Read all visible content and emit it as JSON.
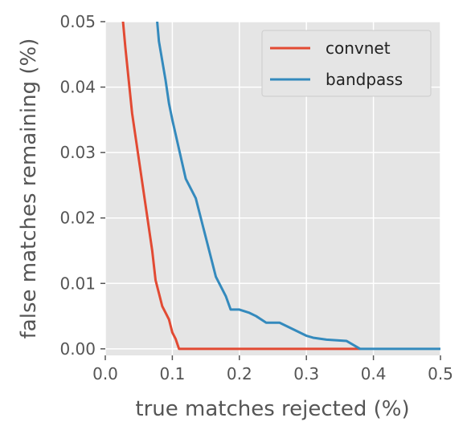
{
  "chart_data": {
    "type": "line",
    "title": "",
    "xlabel": "true matches rejected (%)",
    "ylabel": "false matches remaining (%)",
    "xlim": [
      0.0,
      0.5
    ],
    "ylim": [
      -0.001,
      0.05
    ],
    "xticks": [
      0.0,
      0.1,
      0.2,
      0.3,
      0.4,
      0.5
    ],
    "xtick_labels": [
      "0.0",
      "0.1",
      "0.2",
      "0.3",
      "0.4",
      "0.5"
    ],
    "yticks": [
      0.0,
      0.01,
      0.02,
      0.03,
      0.04,
      0.05
    ],
    "ytick_labels": [
      "0.00",
      "0.01",
      "0.02",
      "0.03",
      "0.04",
      "0.05"
    ],
    "grid": true,
    "legend_position": "top-right",
    "background": "#E5E5E5",
    "series": [
      {
        "name": "convnet",
        "color": "#E24A33",
        "x": [
          0.026,
          0.03,
          0.035,
          0.04,
          0.05,
          0.06,
          0.07,
          0.075,
          0.08,
          0.085,
          0.09,
          0.095,
          0.1,
          0.105,
          0.11,
          0.2,
          0.3,
          0.38
        ],
        "y": [
          0.0505,
          0.046,
          0.041,
          0.036,
          0.029,
          0.022,
          0.015,
          0.0105,
          0.0085,
          0.0065,
          0.0055,
          0.0045,
          0.0025,
          0.0015,
          0.0,
          0.0,
          0.0,
          0.0
        ]
      },
      {
        "name": "bandpass",
        "color": "#348ABD",
        "x": [
          0.077,
          0.08,
          0.09,
          0.095,
          0.1,
          0.11,
          0.12,
          0.135,
          0.15,
          0.165,
          0.18,
          0.187,
          0.2,
          0.215,
          0.225,
          0.24,
          0.26,
          0.28,
          0.3,
          0.31,
          0.33,
          0.36,
          0.38,
          0.5
        ],
        "y": [
          0.0505,
          0.047,
          0.041,
          0.0375,
          0.035,
          0.0305,
          0.026,
          0.023,
          0.017,
          0.011,
          0.008,
          0.006,
          0.006,
          0.0055,
          0.005,
          0.004,
          0.004,
          0.003,
          0.002,
          0.0017,
          0.0014,
          0.0012,
          0.0,
          0.0
        ]
      }
    ]
  }
}
